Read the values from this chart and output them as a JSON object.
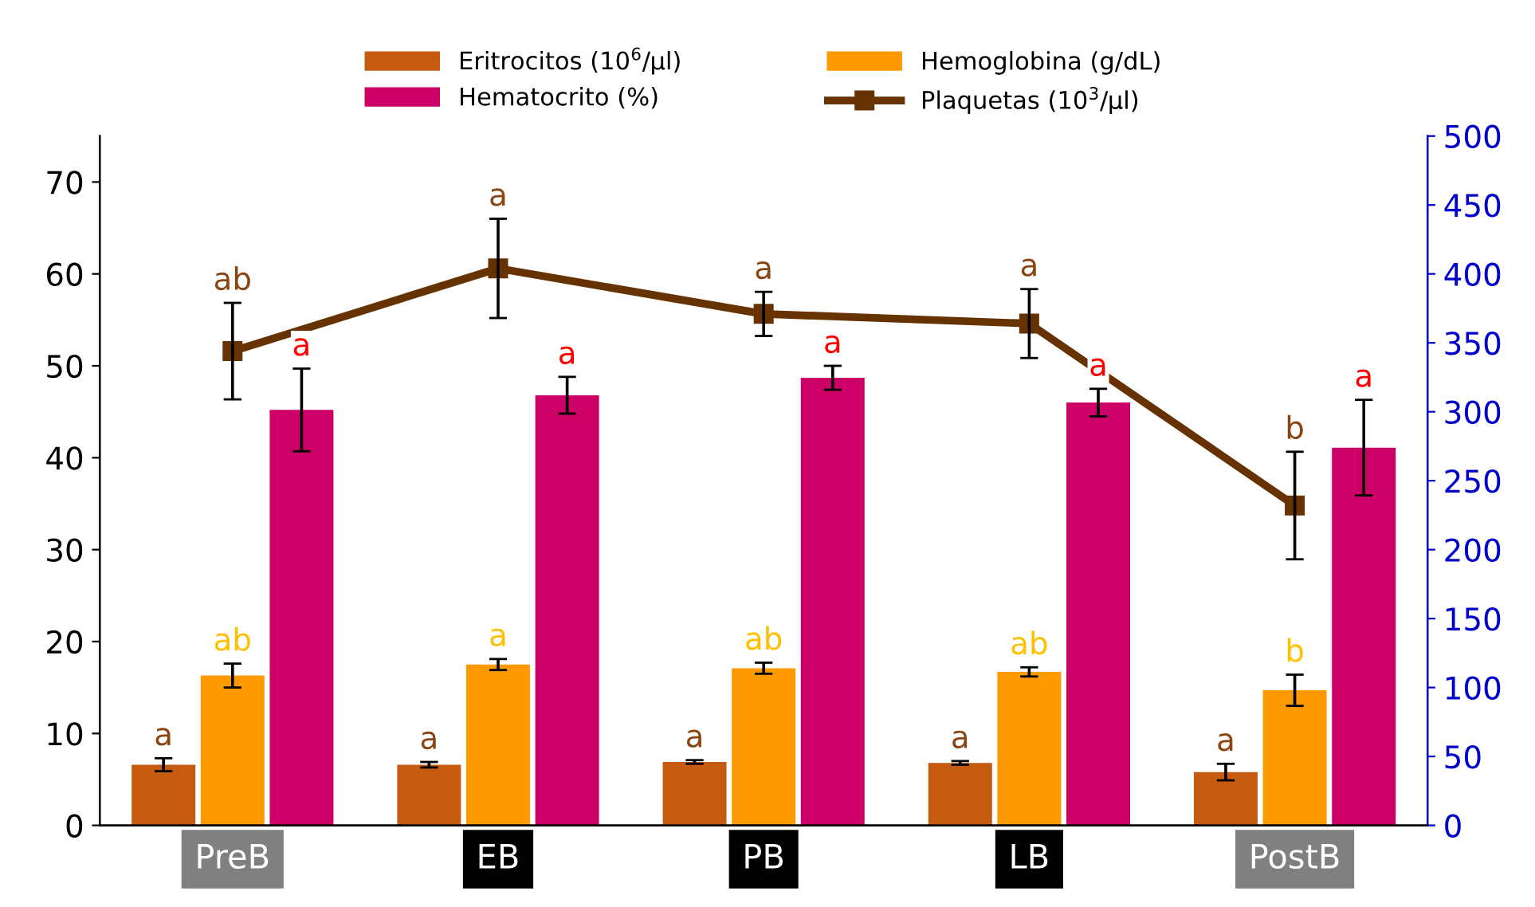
{
  "chart_data": {
    "type": "bar",
    "categories": [
      "PreB",
      "EB",
      "PB",
      "LB",
      "PostB"
    ],
    "series": [
      {
        "name": "Eritrocitos (10$^{6}$/µl)",
        "color": "#c55a11",
        "values": [
          6.6,
          6.6,
          6.9,
          6.8,
          5.8
        ],
        "errors": [
          0.7,
          0.3,
          0.2,
          0.2,
          0.9
        ],
        "value_labels": [
          "a",
          "a",
          "a",
          "a",
          "a"
        ]
      },
      {
        "name": "Hemoglobina (g/dL)",
        "color": "#ff9900",
        "values": [
          16.3,
          17.5,
          17.1,
          16.7,
          14.7
        ],
        "errors": [
          1.3,
          0.6,
          0.6,
          0.5,
          1.7
        ],
        "value_labels": [
          "ab",
          "a",
          "ab",
          "ab",
          "b"
        ]
      },
      {
        "name": "Hematocrito (%)",
        "color": "#cc0066",
        "values": [
          45.2,
          46.8,
          48.7,
          46.0,
          41.1
        ],
        "errors": [
          4.5,
          2.0,
          1.3,
          1.5,
          5.2
        ],
        "value_labels": [
          "a",
          "a",
          "a",
          "a",
          "a"
        ]
      },
      {
        "name": "Plaquetas (10$^{3}$/µl)",
        "type": "line",
        "axis": "y2",
        "color": "#663300",
        "marker": "square",
        "values": [
          344,
          404,
          371,
          364,
          232
        ],
        "errors": [
          35,
          36,
          16,
          25,
          39
        ],
        "value_labels": [
          "ab",
          "a",
          "a",
          "a",
          "b"
        ]
      }
    ],
    "ylim": [
      0,
      75
    ],
    "yticks": [
      0,
      10,
      20,
      30,
      40,
      50,
      60,
      70
    ],
    "y2lim": [
      0,
      500
    ],
    "y2ticks": [
      0,
      50,
      100,
      150,
      200,
      250,
      300,
      350,
      400,
      450,
      500
    ],
    "legend": "top",
    "grid": false
  }
}
